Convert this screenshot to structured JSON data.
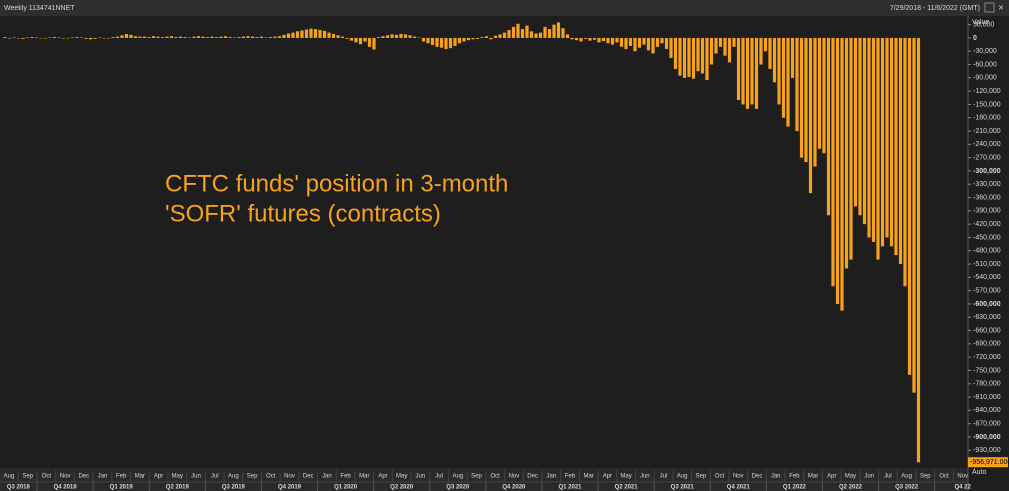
{
  "chart_data": {
    "type": "bar",
    "header_left": "Weekly 1134741NNET",
    "header_right": "7/29/2018 - 11/6/2022 (GMT)",
    "axis_title": "Value",
    "axis_mode": "Auto",
    "annotation": [
      "CFTC funds' position in 3-month",
      "'SOFR' futures (contracts)"
    ],
    "color": "#f7a21b",
    "values": [
      2000,
      -1000,
      1000,
      0,
      -2000,
      1000,
      2000,
      1000,
      -1000,
      0,
      1000,
      2000,
      1000,
      0,
      -1000,
      1000,
      2000,
      1000,
      -2000,
      -3000,
      -2000,
      1000,
      0,
      -1000,
      2000,
      3000,
      6000,
      9000,
      7000,
      4000,
      3000,
      3000,
      2000,
      4000,
      3000,
      2000,
      3000,
      4000,
      2000,
      3000,
      2000,
      1000,
      3000,
      4000,
      3000,
      2000,
      3000,
      2000,
      3000,
      4000,
      2000,
      1000,
      2000,
      3000,
      4000,
      3000,
      2000,
      3000,
      1000,
      2000,
      3000,
      4000,
      7000,
      10000,
      12000,
      15000,
      17000,
      19000,
      21000,
      20000,
      18000,
      16000,
      12000,
      9000,
      6000,
      3000,
      -2000,
      -6000,
      -10000,
      -14000,
      -8000,
      -20000,
      -26000,
      2000,
      4000,
      6000,
      8000,
      7000,
      9000,
      8000,
      6000,
      3000,
      1000,
      -8000,
      -12000,
      -16000,
      -20000,
      -22000,
      -25000,
      -23000,
      -18000,
      -12000,
      -8000,
      -5000,
      -3000,
      -2000,
      2000,
      4000,
      -3000,
      5000,
      8000,
      12000,
      18000,
      25000,
      32000,
      20000,
      28000,
      15000,
      10000,
      12000,
      25000,
      20000,
      30000,
      35000,
      22000,
      8000,
      -3000,
      -5000,
      -8000,
      -2000,
      -6000,
      -4000,
      -10000,
      -7000,
      -12000,
      -15000,
      -10000,
      -20000,
      -25000,
      -18000,
      -30000,
      -22000,
      -15000,
      -28000,
      -35000,
      -20000,
      -12000,
      -25000,
      -45000,
      -70000,
      -85000,
      -90000,
      -88000,
      -92000,
      -75000,
      -80000,
      -95000,
      -60000,
      -35000,
      -20000,
      -40000,
      -55000,
      -20000,
      -140000,
      -150000,
      -160000,
      -150000,
      -160000,
      -60000,
      -30000,
      -70000,
      -100000,
      -150000,
      -180000,
      -200000,
      -90000,
      -210000,
      -270000,
      -280000,
      -350000,
      -290000,
      -250000,
      -260000,
      -400000,
      -560000,
      -600000,
      -615000,
      -520000,
      -500000,
      -380000,
      -400000,
      -420000,
      -450000,
      -460000,
      -500000,
      -470000,
      -450000,
      -470000,
      -490000,
      -510000,
      -560000,
      -760000,
      -800000,
      -956971
    ],
    "last_value_label": "-956,971.000",
    "ylim": [
      -970000,
      45000
    ],
    "yticks": [
      {
        "value": 30000,
        "label": "30,000"
      },
      0,
      {
        "value": -30000,
        "label": "-30,000"
      },
      {
        "value": -60000,
        "label": "-60,000"
      },
      {
        "value": -90000,
        "label": "-90,000"
      },
      {
        "value": -120000,
        "label": "-120,000"
      },
      {
        "value": -150000,
        "label": "-150,000"
      },
      {
        "value": -180000,
        "label": "-180,000"
      },
      {
        "value": -210000,
        "label": "-210,000"
      },
      {
        "value": -240000,
        "label": "-240,000"
      },
      {
        "value": -270000,
        "label": "-270,000"
      },
      {
        "value": -300000,
        "label": "-300,000"
      },
      {
        "value": -330000,
        "label": "-330,000"
      },
      {
        "value": -360000,
        "label": "-360,000"
      },
      {
        "value": -390000,
        "label": "-390,000"
      },
      {
        "value": -420000,
        "label": "-420,000"
      },
      {
        "value": -450000,
        "label": "-450,000"
      },
      {
        "value": -480000,
        "label": "-480,000"
      },
      {
        "value": -510000,
        "label": "-510,000"
      },
      {
        "value": -540000,
        "label": "-540,000"
      },
      {
        "value": -570000,
        "label": "-570,000"
      },
      {
        "value": -600000,
        "label": "-600,000"
      },
      {
        "value": -630000,
        "label": "-630,000"
      },
      {
        "value": -660000,
        "label": "-660,000"
      },
      {
        "value": -690000,
        "label": "-690,000"
      },
      {
        "value": -720000,
        "label": "-720,000"
      },
      {
        "value": -750000,
        "label": "-750,000"
      },
      {
        "value": -780000,
        "label": "-780,000"
      },
      {
        "value": -810000,
        "label": "-810,000"
      },
      {
        "value": -840000,
        "label": "-840,000"
      },
      {
        "value": -870000,
        "label": "-870,000"
      },
      {
        "value": -900000,
        "label": "-900,000"
      },
      {
        "value": -930000,
        "label": "-930,000"
      }
    ],
    "x_month_labels": [
      "Aug",
      "Sep",
      "Oct",
      "Nov",
      "Dec",
      "Jan",
      "Feb",
      "Mar",
      "Apr",
      "May",
      "Jun",
      "Jul",
      "Aug",
      "Sep",
      "Oct",
      "Nov",
      "Dec",
      "Jan",
      "Feb",
      "Mar",
      "Apr",
      "May",
      "Jun",
      "Jul",
      "Aug",
      "Sep",
      "Oct",
      "Nov",
      "Dec",
      "Jan",
      "Feb",
      "Mar",
      "Apr",
      "May",
      "Jun",
      "Jul",
      "Aug",
      "Sep",
      "Oct",
      "Nov",
      "Dec",
      "Jan",
      "Feb",
      "Mar",
      "Apr",
      "May",
      "Jun",
      "Jul",
      "Aug",
      "Sep",
      "Oct",
      "Nov"
    ],
    "x_quarter_labels": [
      "Q3 2018",
      "Q4 2018",
      "Q1 2019",
      "Q2 2019",
      "Q3 2019",
      "Q4 2019",
      "Q1 2020",
      "Q2 2020",
      "Q3 2020",
      "Q4 2020",
      "Q1 2021",
      "Q2 2021",
      "Q3 2021",
      "Q4 2021",
      "Q1 2022",
      "Q2 2022",
      "Q3 2022",
      "Q4 22"
    ]
  }
}
